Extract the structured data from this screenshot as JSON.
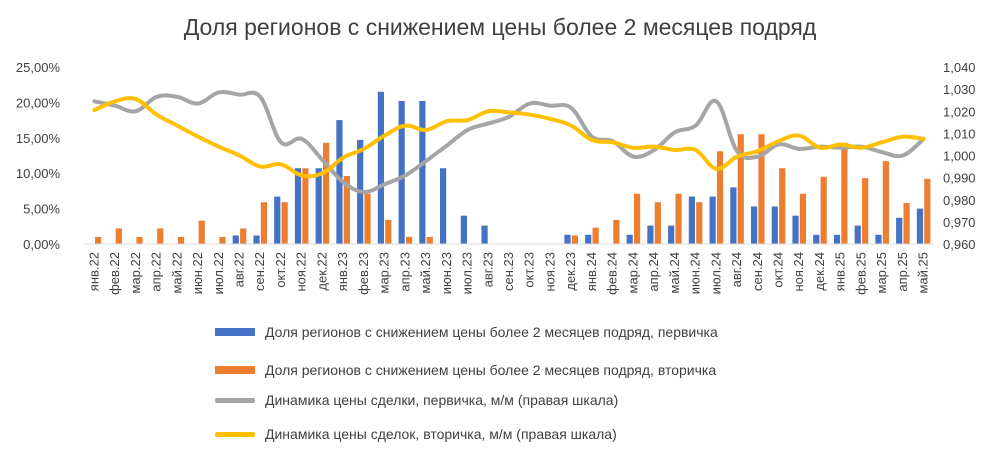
{
  "chart_data": {
    "type": "bar",
    "title": "Доля регионов с снижением цены более 2 месяцев подряд",
    "categories": [
      "янв.22",
      "фев.22",
      "мар.22",
      "апр.22",
      "май.22",
      "июн.22",
      "июл.22",
      "авг.22",
      "сен.22",
      "окт.22",
      "ноя.22",
      "дек.22",
      "янв.23",
      "фев.23",
      "мар.23",
      "апр.23",
      "май.23",
      "июн.23",
      "июл.23",
      "авг.23",
      "сен.23",
      "окт.23",
      "ноя.23",
      "дек.23",
      "янв.24",
      "фев.24",
      "мар.24",
      "апр.24",
      "май.24",
      "июн.24",
      "июл.24",
      "авг.24",
      "сен.24",
      "окт.24",
      "ноя.24",
      "дек.24",
      "янв.25",
      "фев.25",
      "мар.25",
      "апр.25",
      "май.25"
    ],
    "left_axis": {
      "ticks": [
        "0,00%",
        "5,00%",
        "10,00%",
        "15,00%",
        "20,00%",
        "25,00%"
      ],
      "ylim": [
        0,
        25
      ]
    },
    "right_axis": {
      "ticks": [
        "0,960",
        "0,970",
        "0,980",
        "0,990",
        "1,000",
        "1,010",
        "1,020",
        "1,030",
        "1,040"
      ],
      "ylim": [
        0.96,
        1.04
      ]
    },
    "grid": false,
    "legend_position": "bottom",
    "series": [
      {
        "name": "Доля регионов с снижением цены более 2 месяцев подряд, первичка",
        "type": "bar",
        "axis": "left",
        "color": "#4472C4",
        "values": [
          0,
          0,
          0,
          0,
          0,
          0,
          0,
          1.2,
          1.2,
          6.7,
          10.7,
          10.7,
          17.5,
          14.7,
          21.5,
          20.2,
          20.2,
          10.7,
          4.0,
          2.6,
          0,
          0,
          0,
          1.3,
          1.3,
          0,
          1.3,
          2.6,
          2.6,
          6.7,
          6.7,
          8.0,
          5.3,
          5.3,
          4.0,
          1.3,
          1.3,
          2.6,
          1.3,
          3.7,
          5.0
        ]
      },
      {
        "name": "Доля регионов с снижением цены более 2 месяцев подряд, вторичка",
        "type": "bar",
        "axis": "left",
        "color": "#ED7D31",
        "values": [
          1.0,
          2.2,
          1.0,
          2.2,
          1.0,
          3.3,
          1.0,
          2.2,
          5.9,
          5.9,
          10.7,
          14.3,
          9.6,
          7.1,
          3.4,
          1.0,
          1.0,
          0,
          0,
          0,
          0,
          0,
          0,
          1.2,
          2.3,
          3.4,
          7.1,
          5.9,
          7.1,
          5.9,
          13.1,
          15.5,
          15.5,
          10.7,
          7.1,
          9.5,
          14.3,
          9.3,
          11.7,
          5.8,
          9.2
        ]
      },
      {
        "name": "Динамика цены сделки, первичка, м/м (правая шкала)",
        "type": "line",
        "axis": "right",
        "color": "#A5A5A5",
        "values": [
          1.0245,
          1.0225,
          1.02,
          1.0265,
          1.0265,
          1.0235,
          1.0285,
          1.0275,
          1.0265,
          1.006,
          1.0075,
          0.998,
          0.988,
          0.9835,
          0.987,
          0.991,
          0.9975,
          1.0045,
          1.0115,
          1.0145,
          1.0175,
          1.0235,
          1.0225,
          1.0215,
          1.0085,
          1.0065,
          0.9995,
          1.0025,
          1.0105,
          1.0135,
          1.0245,
          1.002,
          0.9995,
          1.005,
          1.003,
          1.004,
          1.0035,
          1.004,
          1.0015,
          1.0,
          1.0075
        ]
      },
      {
        "name": "Динамика цены сделок, вторичка, м/м (правая шкала)",
        "type": "line",
        "axis": "right",
        "color": "#FFC000",
        "values": [
          1.0205,
          1.0245,
          1.0255,
          1.0185,
          1.0135,
          1.0085,
          1.004,
          1.0,
          0.995,
          0.996,
          0.991,
          0.992,
          0.999,
          1.003,
          1.009,
          1.0135,
          1.0115,
          1.0155,
          1.016,
          1.02,
          1.0195,
          1.0185,
          1.0165,
          1.0135,
          1.007,
          1.006,
          1.0035,
          1.004,
          1.0025,
          1.0025,
          0.994,
          0.9995,
          1.002,
          1.0065,
          1.009,
          1.0035,
          1.005,
          1.0035,
          1.006,
          1.0085,
          1.0075
        ]
      }
    ]
  }
}
